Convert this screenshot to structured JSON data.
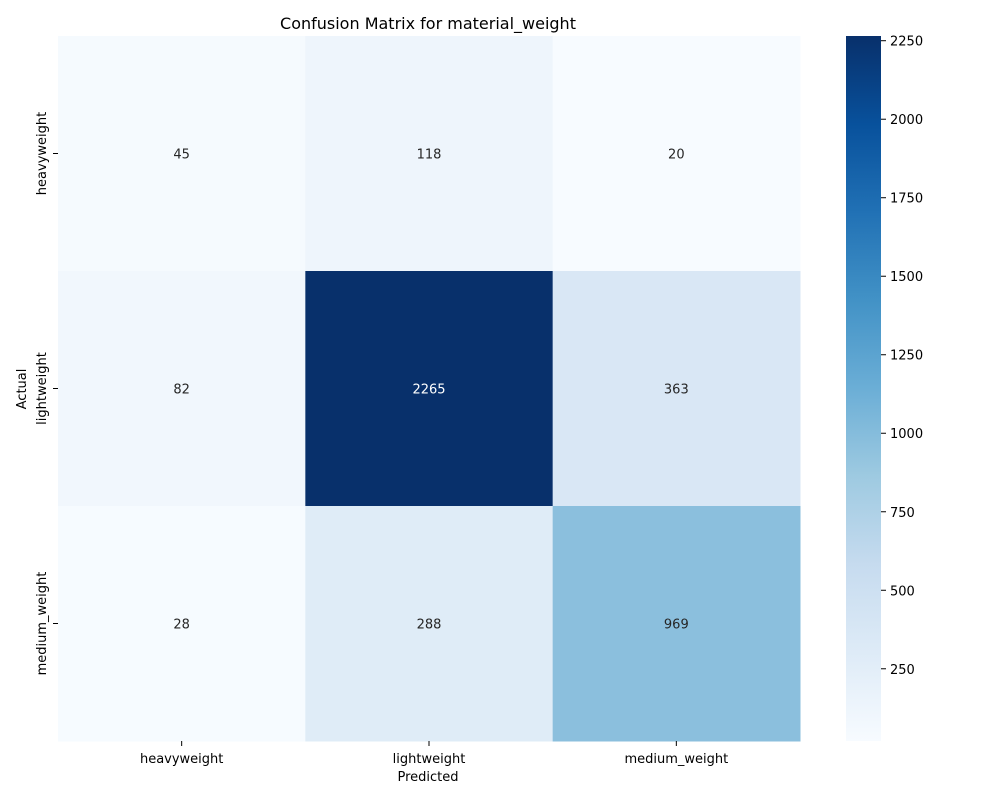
{
  "chart_data": {
    "type": "heatmap",
    "title": "Confusion Matrix for material_weight",
    "xlabel": "Predicted",
    "ylabel": "Actual",
    "x_categories": [
      "heavyweight",
      "lightweight",
      "medium_weight"
    ],
    "y_categories": [
      "heavyweight",
      "lightweight",
      "medium_weight"
    ],
    "values": [
      [
        45,
        118,
        20
      ],
      [
        82,
        2265,
        363
      ],
      [
        28,
        288,
        969
      ]
    ],
    "colorbar": {
      "colormap": "Blues",
      "vmin": 20,
      "vmax": 2265,
      "ticks": [
        250,
        500,
        750,
        1000,
        1250,
        1500,
        1750,
        2000,
        2250
      ]
    },
    "annotation_colors": {
      "light_background": "#262626",
      "dark_background": "#ffffff"
    }
  }
}
